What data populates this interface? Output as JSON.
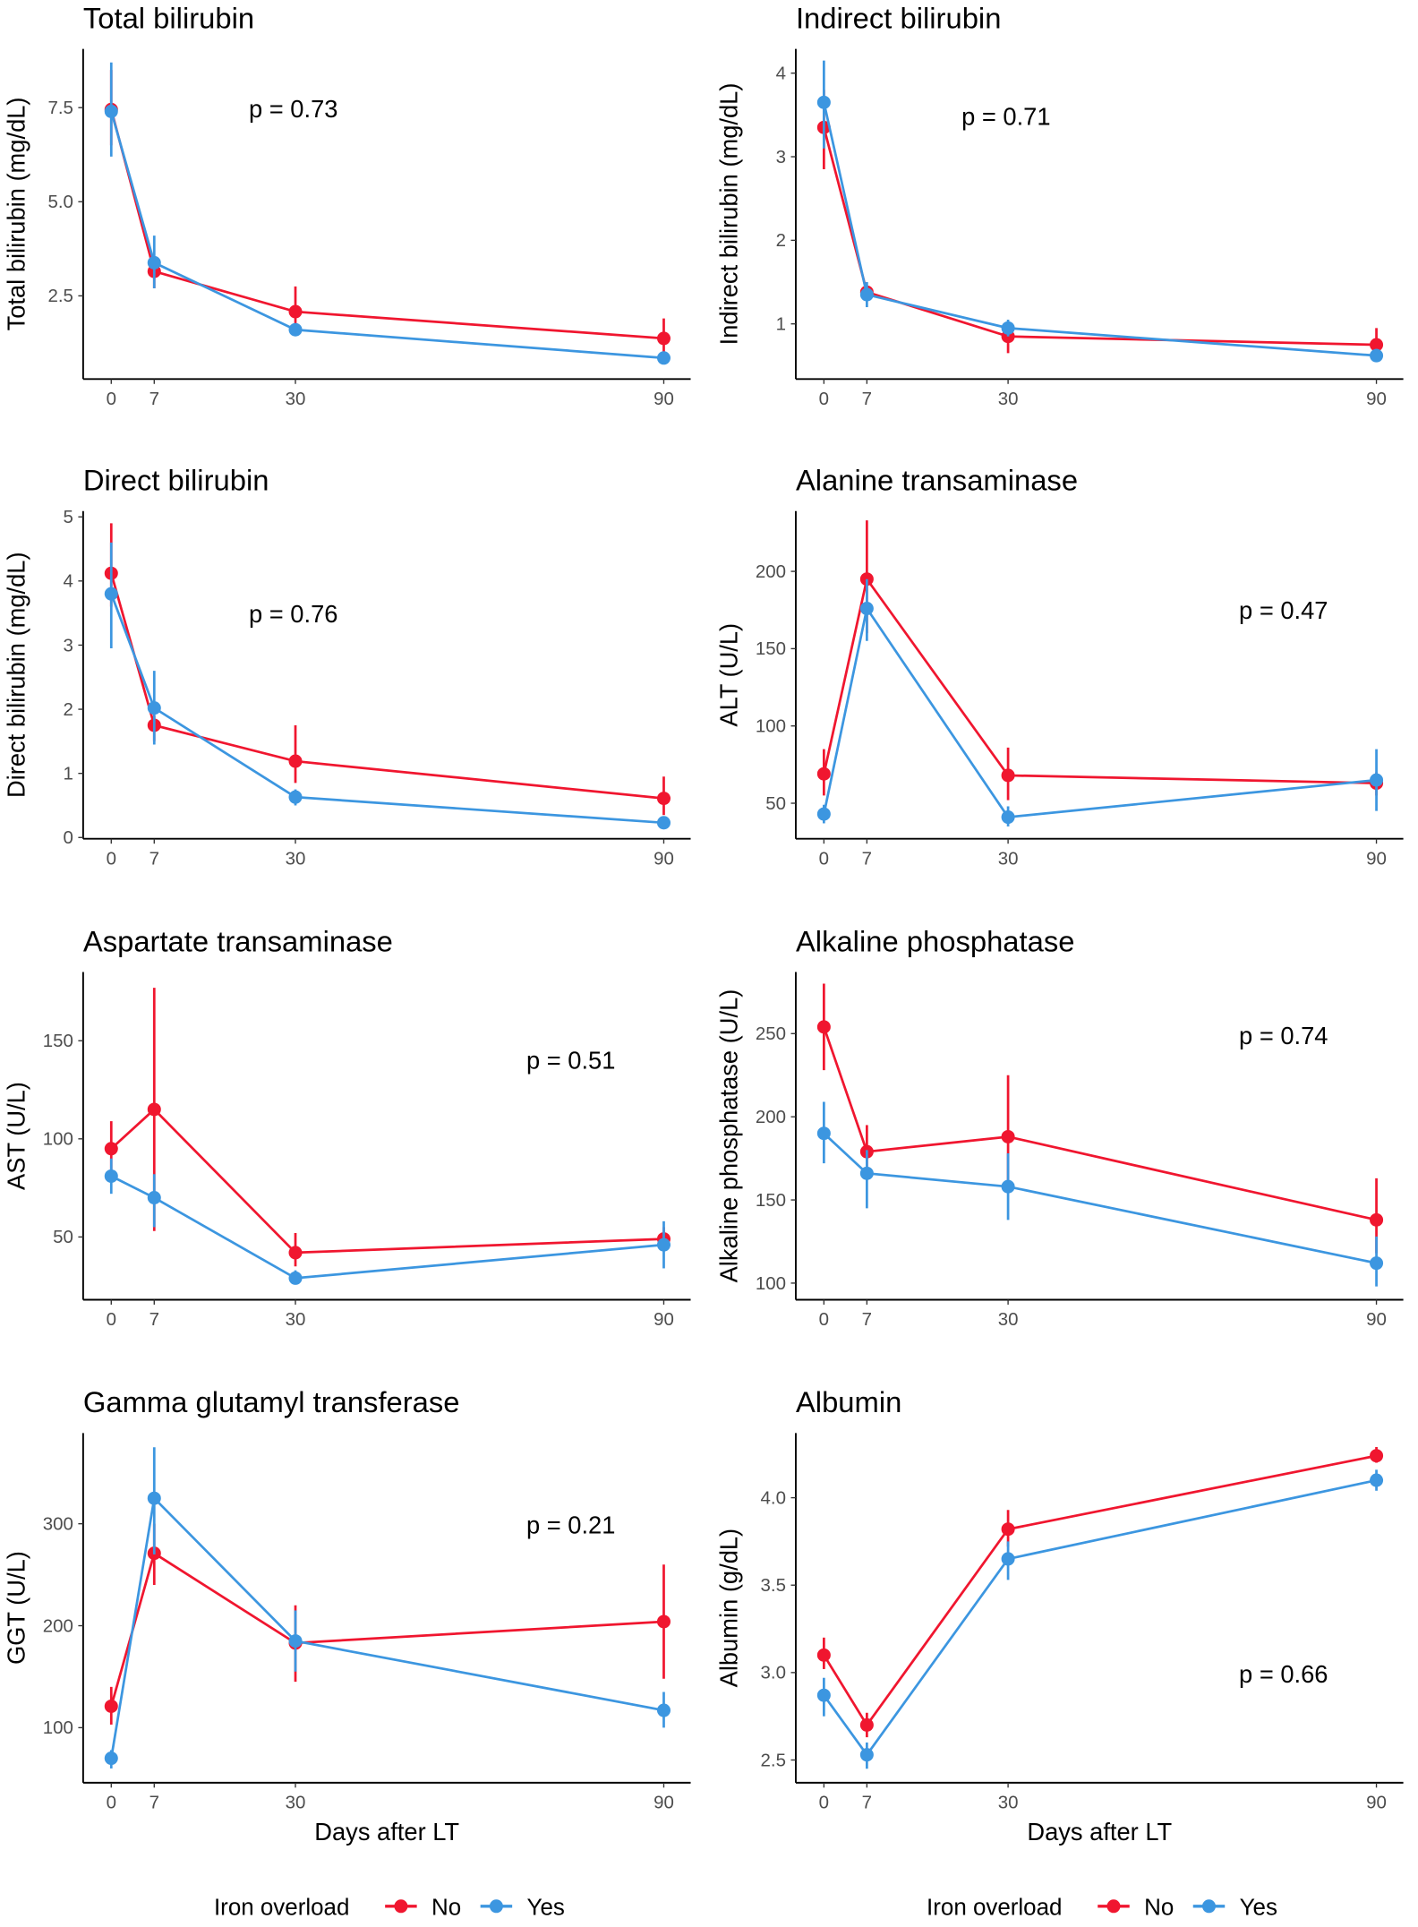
{
  "colors": {
    "No": "#F0162F",
    "Yes": "#3C96E0"
  },
  "legend": {
    "title": "Iron overload",
    "items": [
      "No",
      "Yes"
    ]
  },
  "xlabel": "Days after LT",
  "chart_data": [
    {
      "type": "line",
      "title": "Total bilirubin",
      "ylabel": "Total bilirubin (mg/dL)",
      "p": "p = 0.73",
      "x": [
        0,
        7,
        30,
        90
      ],
      "xticks": [
        "0",
        "7",
        "30",
        "90"
      ],
      "ylim": [
        0.29,
        9.06
      ],
      "yticks": [
        "2.5",
        "5.0",
        "7.5"
      ],
      "ytick_values": [
        2.5,
        5.0,
        7.5
      ],
      "series": [
        {
          "name": "No",
          "values": [
            7.45,
            3.15,
            2.08,
            1.37
          ],
          "lower": [
            6.5,
            2.7,
            1.45,
            1.0
          ],
          "upper": [
            8.5,
            3.4,
            2.75,
            1.9
          ]
        },
        {
          "name": "Yes",
          "values": [
            7.4,
            3.38,
            1.6,
            0.85
          ],
          "lower": [
            6.2,
            2.7,
            1.45,
            0.78
          ],
          "upper": [
            8.7,
            4.1,
            1.75,
            0.92
          ]
        }
      ]
    },
    {
      "type": "line",
      "title": "Indirect bilirubin",
      "ylabel": "Indirect bilirubin (mg/dL)",
      "p": "p = 0.71",
      "x": [
        0,
        7,
        30,
        90
      ],
      "xticks": [
        "0",
        "7",
        "30",
        "90"
      ],
      "ylim": [
        0.34,
        4.29
      ],
      "yticks": [
        "1",
        "2",
        "3",
        "4"
      ],
      "ytick_values": [
        1,
        2,
        3,
        4
      ],
      "series": [
        {
          "name": "No",
          "values": [
            3.35,
            1.38,
            0.85,
            0.75
          ],
          "lower": [
            2.85,
            1.3,
            0.65,
            0.6
          ],
          "upper": [
            3.8,
            1.45,
            1.0,
            0.95
          ]
        },
        {
          "name": "Yes",
          "values": [
            3.65,
            1.35,
            0.95,
            0.62
          ],
          "lower": [
            3.1,
            1.2,
            0.85,
            0.55
          ],
          "upper": [
            4.15,
            1.5,
            1.05,
            0.7
          ]
        }
      ]
    },
    {
      "type": "line",
      "title": "Direct bilirubin",
      "ylabel": "Direct bilirubin (mg/dL)",
      "p": "p = 0.76",
      "x": [
        0,
        7,
        30,
        90
      ],
      "xticks": [
        "0",
        "7",
        "30",
        "90"
      ],
      "ylim": [
        -0.02,
        5.09
      ],
      "yticks": [
        "0",
        "1",
        "2",
        "3",
        "4",
        "5"
      ],
      "ytick_values": [
        0,
        1,
        2,
        3,
        4,
        5
      ],
      "series": [
        {
          "name": "No",
          "values": [
            4.12,
            1.75,
            1.19,
            0.61
          ],
          "lower": [
            3.6,
            1.5,
            0.85,
            0.35
          ],
          "upper": [
            4.9,
            1.9,
            1.75,
            0.95
          ]
        },
        {
          "name": "Yes",
          "values": [
            3.8,
            2.02,
            0.63,
            0.23
          ],
          "lower": [
            2.95,
            1.45,
            0.5,
            0.18
          ],
          "upper": [
            4.6,
            2.6,
            0.75,
            0.28
          ]
        }
      ]
    },
    {
      "type": "line",
      "title": "Alanine transaminase",
      "ylabel": "ALT (U/L)",
      "p": "p = 0.47",
      "x": [
        0,
        7,
        30,
        90
      ],
      "xticks": [
        "0",
        "7",
        "30",
        "90"
      ],
      "ylim": [
        27,
        239
      ],
      "yticks": [
        "50",
        "100",
        "150",
        "200"
      ],
      "ytick_values": [
        50,
        100,
        150,
        200
      ],
      "series": [
        {
          "name": "No",
          "values": [
            69,
            195,
            68,
            63
          ],
          "lower": [
            55,
            160,
            52,
            55
          ],
          "upper": [
            85,
            233,
            86,
            70
          ]
        },
        {
          "name": "Yes",
          "values": [
            43,
            176,
            41,
            65
          ],
          "lower": [
            37,
            155,
            35,
            45
          ],
          "upper": [
            49,
            195,
            48,
            85
          ]
        }
      ]
    },
    {
      "type": "line",
      "title": "Aspartate transaminase",
      "ylabel": "AST (U/L)",
      "p": "p = 0.51",
      "x": [
        0,
        7,
        30,
        90
      ],
      "xticks": [
        "0",
        "7",
        "30",
        "90"
      ],
      "ylim": [
        18,
        185
      ],
      "yticks": [
        "50",
        "100",
        "150"
      ],
      "ytick_values": [
        50,
        100,
        150
      ],
      "series": [
        {
          "name": "No",
          "values": [
            95,
            115,
            42,
            49
          ],
          "lower": [
            83,
            53,
            35,
            43
          ],
          "upper": [
            109,
            177,
            52,
            55
          ]
        },
        {
          "name": "Yes",
          "values": [
            81,
            70,
            29,
            46
          ],
          "lower": [
            72,
            55,
            26,
            34
          ],
          "upper": [
            90,
            82,
            33,
            58
          ]
        }
      ]
    },
    {
      "type": "line",
      "title": "Alkaline phosphatase",
      "ylabel": "Alkaline phosphatase  (U/L)",
      "p": "p = 0.74",
      "x": [
        0,
        7,
        30,
        90
      ],
      "xticks": [
        "0",
        "7",
        "30",
        "90"
      ],
      "ylim": [
        90,
        287
      ],
      "yticks": [
        "100",
        "150",
        "200",
        "250"
      ],
      "ytick_values": [
        100,
        150,
        200,
        250
      ],
      "series": [
        {
          "name": "No",
          "values": [
            254,
            179,
            188,
            138
          ],
          "lower": [
            228,
            165,
            160,
            118
          ],
          "upper": [
            280,
            195,
            225,
            163
          ]
        },
        {
          "name": "Yes",
          "values": [
            190,
            166,
            158,
            112
          ],
          "lower": [
            172,
            145,
            138,
            98
          ],
          "upper": [
            209,
            180,
            178,
            128
          ]
        }
      ]
    },
    {
      "type": "line",
      "title": "Gamma glutamyl transferase",
      "ylabel": "GGT (U/L)",
      "p": "p = 0.21",
      "x": [
        0,
        7,
        30,
        90
      ],
      "xticks": [
        "0",
        "7",
        "30",
        "90"
      ],
      "ylim": [
        46,
        389
      ],
      "yticks": [
        "100",
        "200",
        "300"
      ],
      "ytick_values": [
        100,
        200,
        300
      ],
      "series": [
        {
          "name": "No",
          "values": [
            121,
            271,
            183,
            204
          ],
          "lower": [
            103,
            240,
            145,
            148
          ],
          "upper": [
            140,
            300,
            220,
            260
          ]
        },
        {
          "name": "Yes",
          "values": [
            70,
            325,
            185,
            117
          ],
          "lower": [
            60,
            270,
            155,
            100
          ],
          "upper": [
            78,
            375,
            215,
            135
          ]
        }
      ]
    },
    {
      "type": "line",
      "title": "Albumin",
      "ylabel": "Albumin (g/dL)",
      "p": "p = 0.66",
      "x": [
        0,
        7,
        30,
        90
      ],
      "xticks": [
        "0",
        "7",
        "30",
        "90"
      ],
      "ylim": [
        2.37,
        4.37
      ],
      "yticks": [
        "2.5",
        "3.0",
        "3.5",
        "4.0"
      ],
      "ytick_values": [
        2.5,
        3.0,
        3.5,
        4.0
      ],
      "series": [
        {
          "name": "No",
          "values": [
            3.1,
            2.7,
            3.82,
            4.24
          ],
          "lower": [
            3.02,
            2.63,
            3.72,
            4.2
          ],
          "upper": [
            3.2,
            2.77,
            3.93,
            4.29
          ]
        },
        {
          "name": "Yes",
          "values": [
            2.87,
            2.53,
            3.65,
            4.1
          ],
          "lower": [
            2.75,
            2.45,
            3.53,
            4.04
          ],
          "upper": [
            2.97,
            2.6,
            3.75,
            4.16
          ]
        }
      ]
    }
  ]
}
